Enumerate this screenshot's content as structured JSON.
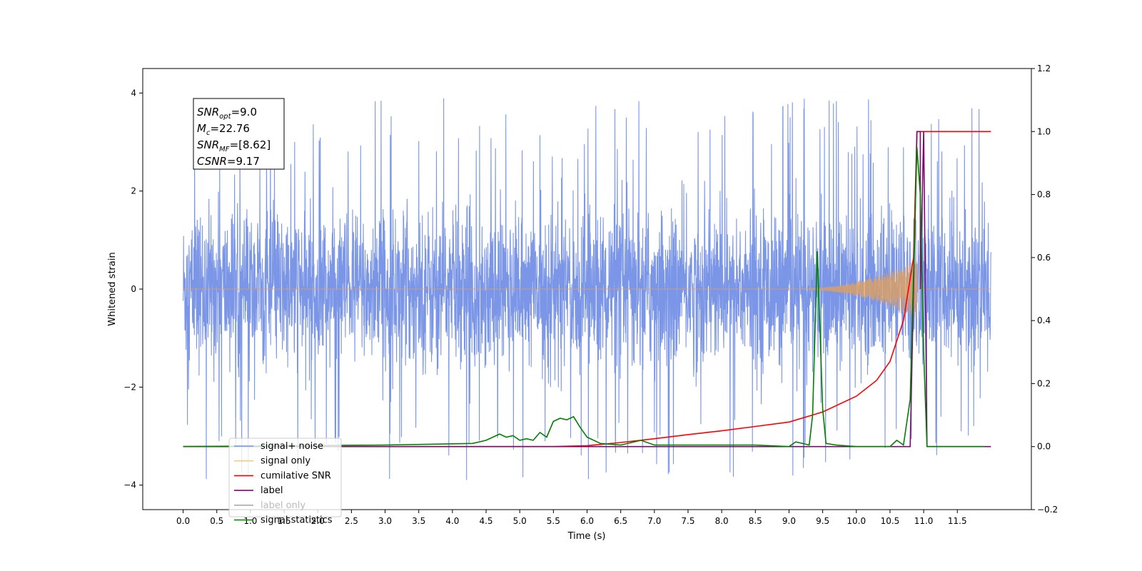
{
  "chart_data": {
    "type": "line",
    "xlabel": "Time (s)",
    "ylabel": "Whitened strain",
    "xlim": [
      -0.6,
      12.6
    ],
    "ylim_left": [
      -4.5,
      4.5
    ],
    "ylim_right": [
      -0.2,
      1.2
    ],
    "x_ticks": [
      "0.0",
      "0.5",
      "1.0",
      "1.5",
      "2.0",
      "2.5",
      "3.0",
      "3.5",
      "4.0",
      "4.5",
      "5.0",
      "5.5",
      "6.0",
      "6.5",
      "7.0",
      "7.5",
      "8.0",
      "8.5",
      "9.0",
      "9.5",
      "10.0",
      "10.5",
      "11.0",
      "11.5"
    ],
    "y_ticks_left": [
      "−4",
      "−2",
      "0",
      "2",
      "4"
    ],
    "y_ticks_right": [
      "−0.2",
      "0.0",
      "0.2",
      "0.4",
      "0.6",
      "0.8",
      "1.0",
      "1.2"
    ],
    "annotation": {
      "lines": [
        {
          "main": "SNR",
          "sub": "opt",
          "rest": "=9.0"
        },
        {
          "main": "M",
          "sub": "c",
          "rest": "=22.76"
        },
        {
          "main": "SNR",
          "sub": "MF",
          "rest": "=[8.62]"
        },
        {
          "main": "CSNR",
          "sub": "",
          "rest": "=9.17"
        }
      ]
    },
    "legend": {
      "location": "lower-left",
      "entries": [
        {
          "label": "signal+ noise",
          "color": "#7b96e6"
        },
        {
          "label": "signal only",
          "color": "#ffc77a"
        },
        {
          "label": "cumilative SNR",
          "color": "#ff0000"
        },
        {
          "label": "label",
          "color": "#7a0a6e"
        },
        {
          "label": "label only",
          "color": "#aaaaaa",
          "partially_hidden": true
        },
        {
          "label": "signal statistics",
          "color": "#008000"
        }
      ]
    },
    "series": [
      {
        "name": "signal+ noise",
        "axis": "left",
        "color": "#7b96e6",
        "description_range": [
          -2.6,
          2.5
        ],
        "spikes_max": 4.1,
        "spikes_min": -4.05,
        "t_start": 0.0,
        "t_end": 12.0
      },
      {
        "name": "signal only",
        "axis": "left",
        "color": "#e0a060",
        "chirp_start": 9.0,
        "chirp_peak_t": 10.9,
        "chirp_peak_amp": 0.6,
        "t_end": 12.0
      },
      {
        "name": "cumilative SNR",
        "axis": "right",
        "x": [
          0.0,
          4.0,
          5.5,
          6.0,
          6.5,
          7.0,
          7.5,
          8.0,
          8.5,
          9.0,
          9.5,
          10.0,
          10.3,
          10.5,
          10.7,
          10.85,
          10.9,
          11.0,
          12.0
        ],
        "y": [
          0.0,
          0.0,
          0.0,
          0.003,
          0.013,
          0.025,
          0.038,
          0.05,
          0.064,
          0.078,
          0.11,
          0.16,
          0.21,
          0.27,
          0.4,
          0.6,
          1.0,
          1.0,
          1.0
        ]
      },
      {
        "name": "label",
        "axis": "right",
        "x": [
          0.0,
          10.8,
          10.9,
          10.95,
          10.95,
          11.0,
          11.05,
          12.0
        ],
        "y": [
          0.0,
          0.0,
          1.0,
          1.0,
          0.5,
          1.0,
          0.0,
          0.0
        ]
      },
      {
        "name": "signal statistics",
        "axis": "right",
        "x": [
          0.0,
          3.0,
          4.3,
          4.5,
          4.7,
          4.8,
          4.9,
          5.0,
          5.1,
          5.2,
          5.3,
          5.4,
          5.5,
          5.6,
          5.7,
          5.8,
          5.9,
          6.0,
          6.2,
          6.5,
          6.8,
          7.0,
          7.8,
          8.5,
          9.0,
          9.1,
          9.3,
          9.35,
          9.42,
          9.5,
          9.55,
          9.7,
          10.0,
          10.5,
          10.6,
          10.7,
          10.8,
          10.9,
          10.95,
          11.0,
          11.05,
          11.2,
          11.9
        ],
        "y": [
          0.0,
          0.005,
          0.01,
          0.02,
          0.04,
          0.03,
          0.035,
          0.02,
          0.025,
          0.02,
          0.045,
          0.03,
          0.08,
          0.09,
          0.085,
          0.095,
          0.06,
          0.03,
          0.01,
          0.005,
          0.02,
          0.005,
          0.005,
          0.005,
          0.0,
          0.015,
          0.005,
          0.1,
          0.62,
          0.12,
          0.01,
          0.005,
          0.0,
          0.0,
          0.02,
          0.005,
          0.15,
          0.95,
          0.8,
          0.3,
          0.0,
          0.0,
          0.0
        ]
      }
    ]
  }
}
